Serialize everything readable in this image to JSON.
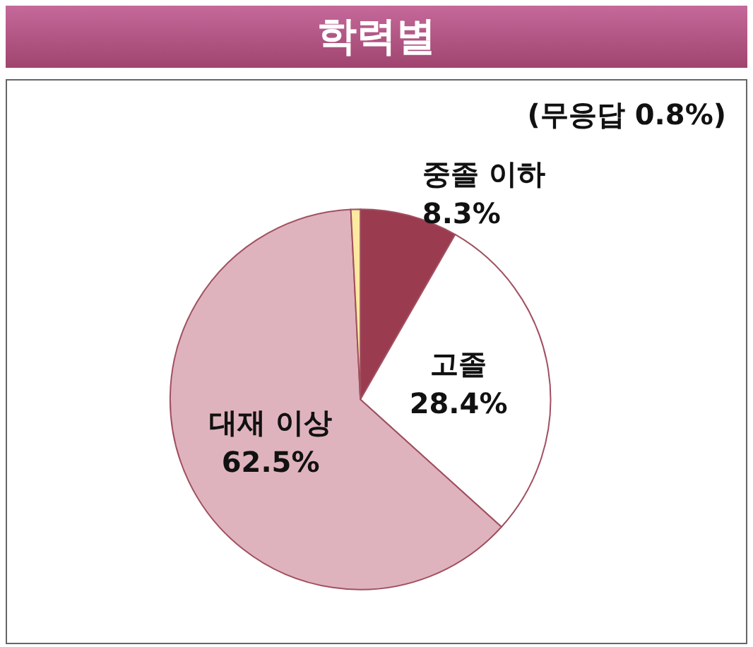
{
  "chart_data": {
    "type": "pie",
    "title": "학력별",
    "categories": [
      "중졸 이하",
      "고졸",
      "대재 이상",
      null
    ],
    "values": [
      8.3,
      28.4,
      62.5,
      0.8
    ],
    "value_labels": [
      "8.3%",
      "28.4%",
      "62.5%",
      null
    ],
    "colors": [
      "#9b3b4f",
      "#ffffff",
      "#dfb3bd",
      "#fde9a0"
    ],
    "annotations": [
      "(무응답 0.8%)"
    ],
    "legend": false
  }
}
